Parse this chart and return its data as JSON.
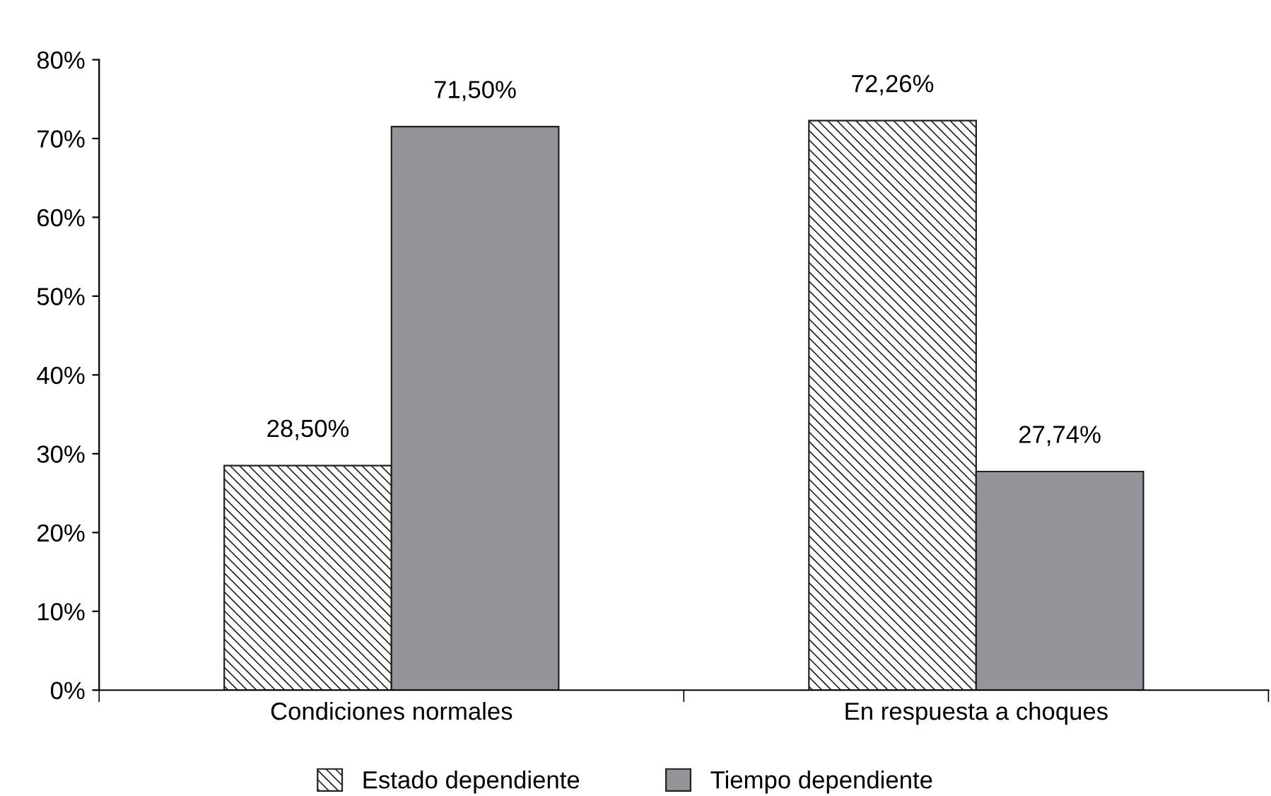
{
  "chart_data": {
    "type": "bar",
    "categories": [
      "Condiciones normales",
      "En respuesta a choques"
    ],
    "series": [
      {
        "name": "Estado dependiente",
        "color": "#222222",
        "values": [
          28.5,
          72.26
        ],
        "value_labels": [
          "28,50%",
          "72,26%"
        ]
      },
      {
        "name": "Tiempo dependiente",
        "color": "#939598",
        "values": [
          71.5,
          27.74
        ],
        "value_labels": [
          "71,50%",
          "27,74%"
        ]
      }
    ],
    "ylim": [
      0,
      80
    ],
    "yticks": [
      {
        "value": 0,
        "label": "0%"
      },
      {
        "value": 10,
        "label": "10%"
      },
      {
        "value": 20,
        "label": "20%"
      },
      {
        "value": 30,
        "label": "30%"
      },
      {
        "value": 40,
        "label": "40%"
      },
      {
        "value": 50,
        "label": "50%"
      },
      {
        "value": 60,
        "label": "60%"
      },
      {
        "value": 70,
        "label": "70%"
      },
      {
        "value": 80,
        "label": "80%"
      }
    ],
    "grid": false,
    "legend": "bottom"
  }
}
